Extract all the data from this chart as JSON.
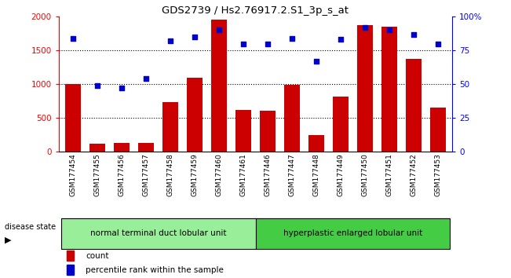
{
  "title": "GDS2739 / Hs2.76917.2.S1_3p_s_at",
  "categories": [
    "GSM177454",
    "GSM177455",
    "GSM177456",
    "GSM177457",
    "GSM177458",
    "GSM177459",
    "GSM177460",
    "GSM177461",
    "GSM177446",
    "GSM177447",
    "GSM177448",
    "GSM177449",
    "GSM177450",
    "GSM177451",
    "GSM177452",
    "GSM177453"
  ],
  "counts": [
    1000,
    110,
    130,
    130,
    730,
    1100,
    1960,
    620,
    600,
    990,
    245,
    810,
    1870,
    1850,
    1370,
    650
  ],
  "percentiles": [
    84,
    49,
    47,
    54,
    82,
    85,
    90,
    80,
    80,
    84,
    67,
    83,
    92,
    90,
    87,
    80
  ],
  "group1_label": "normal terminal duct lobular unit",
  "group1_count": 8,
  "group2_label": "hyperplastic enlarged lobular unit",
  "group2_count": 8,
  "disease_state_label": "disease state",
  "bar_color": "#cc0000",
  "dot_color": "#0000cc",
  "group1_color": "#99ee99",
  "group2_color": "#44cc44",
  "ylim_left": [
    0,
    2000
  ],
  "ylim_right": [
    0,
    100
  ],
  "yticks_left": [
    0,
    500,
    1000,
    1500,
    2000
  ],
  "yticks_right": [
    0,
    25,
    50,
    75,
    100
  ],
  "ytick_labels_left": [
    "0",
    "500",
    "1000",
    "1500",
    "2000"
  ],
  "ytick_labels_right": [
    "0",
    "25",
    "50",
    "75",
    "100%"
  ],
  "legend_count_label": "count",
  "legend_pct_label": "percentile rank within the sample",
  "background_color": "#ffffff"
}
